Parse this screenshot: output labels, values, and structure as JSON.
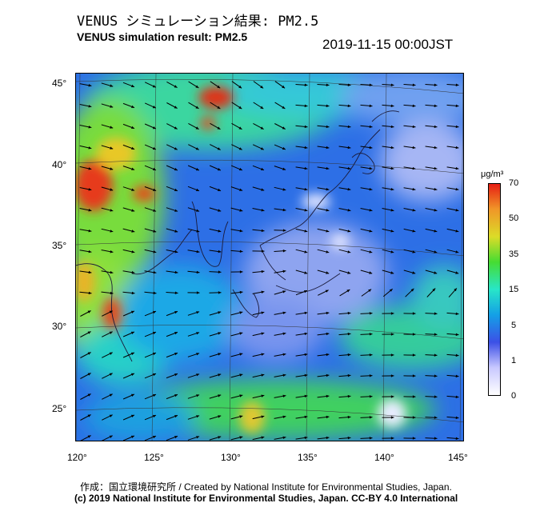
{
  "header": {
    "title_ja": "VENUS シミュレーション結果: PM2.5",
    "title_en": "VENUS simulation result: PM2.5",
    "timestamp": "2019-11-15 00:00JST"
  },
  "map": {
    "lat_labels": [
      "45°",
      "40°",
      "35°",
      "30°",
      "25°"
    ],
    "lon_labels": [
      "120°",
      "125°",
      "130°",
      "135°",
      "140°",
      "145°"
    ],
    "lat_range": [
      23,
      46
    ],
    "lon_range": [
      120,
      145
    ]
  },
  "colorbar": {
    "unit": "μg/m³",
    "ticks": [
      "70",
      "50",
      "35",
      "15",
      "5",
      "1",
      "0"
    ],
    "tick_values": [
      70,
      50,
      35,
      15,
      5,
      1,
      0
    ],
    "colors": [
      "#ffffff",
      "#c8c8ff",
      "#3c50e6",
      "#14a0e6",
      "#28e6c8",
      "#46dc32",
      "#dcdc28",
      "#f09628",
      "#e61e14"
    ]
  },
  "footer": {
    "credit_ja": "作成：国立環境研究所 / Created by National Institute for Environmental Studies, Japan.",
    "copyright": "(c) 2019 National Institute for Environmental Studies, Japan. CC-BY 4.0 International"
  }
}
